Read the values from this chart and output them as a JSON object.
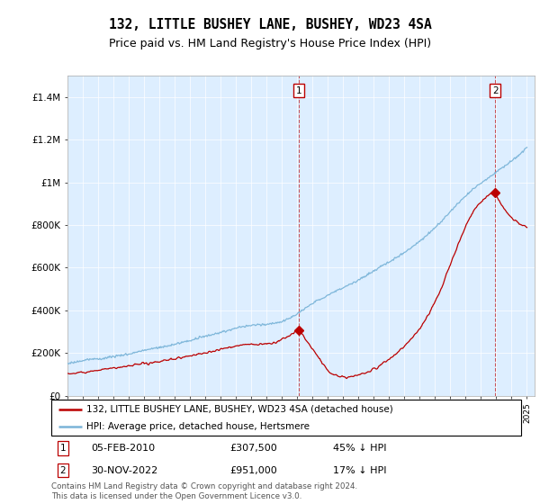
{
  "title": "132, LITTLE BUSHEY LANE, BUSHEY, WD23 4SA",
  "subtitle": "Price paid vs. HM Land Registry's House Price Index (HPI)",
  "ylim": [
    0,
    1500000
  ],
  "yticks": [
    0,
    200000,
    400000,
    600000,
    800000,
    1000000,
    1200000,
    1400000
  ],
  "ytick_labels": [
    "£0",
    "£200K",
    "£400K",
    "£600K",
    "£800K",
    "£1M",
    "£1.2M",
    "£1.4M"
  ],
  "xlim_start": 1995.0,
  "xlim_end": 2025.5,
  "hpi_color": "#7ab4d8",
  "price_color": "#bb0000",
  "background_color": "#ddeeff",
  "marker1_x": 2010.09,
  "marker1_y": 307500,
  "marker2_x": 2022.92,
  "marker2_y": 951000,
  "legend_line1": "132, LITTLE BUSHEY LANE, BUSHEY, WD23 4SA (detached house)",
  "legend_line2": "HPI: Average price, detached house, Hertsmere",
  "annotation1_date": "05-FEB-2010",
  "annotation1_price": "£307,500",
  "annotation1_hpi": "45% ↓ HPI",
  "annotation2_date": "30-NOV-2022",
  "annotation2_price": "£951,000",
  "annotation2_hpi": "17% ↓ HPI",
  "footer": "Contains HM Land Registry data © Crown copyright and database right 2024.\nThis data is licensed under the Open Government Licence v3.0.",
  "title_fontsize": 10.5,
  "subtitle_fontsize": 9,
  "tick_fontsize": 7.5
}
